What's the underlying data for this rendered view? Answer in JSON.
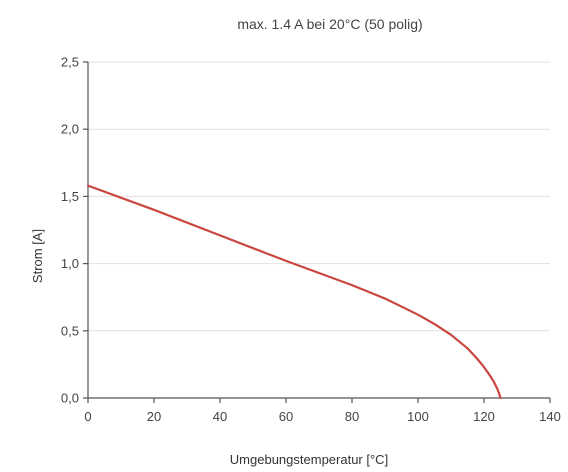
{
  "chart_data": {
    "type": "line",
    "title": "max. 1.4 A bei 20°C (50 polig)",
    "xlabel": "Umgebungstemperatur [°C]",
    "ylabel": "Strom [A]",
    "xlim": [
      0,
      140
    ],
    "ylim": [
      0,
      2.5
    ],
    "x_ticks": [
      "0",
      "20",
      "40",
      "60",
      "80",
      "100",
      "120",
      "140"
    ],
    "y_ticks": [
      "0,0",
      "0,5",
      "1,0",
      "1,5",
      "2,0",
      "2,5"
    ],
    "grid": "horizontal",
    "series": [
      {
        "color": "#c8473f",
        "x": [
          0,
          20,
          40,
          60,
          70,
          80,
          90,
          100,
          105,
          110,
          115,
          118,
          120,
          122,
          123,
          124,
          124.5,
          125
        ],
        "y": [
          1.58,
          1.4,
          1.21,
          1.02,
          0.93,
          0.84,
          0.74,
          0.62,
          0.55,
          0.47,
          0.37,
          0.29,
          0.23,
          0.16,
          0.12,
          0.07,
          0.04,
          0.0
        ]
      }
    ]
  }
}
